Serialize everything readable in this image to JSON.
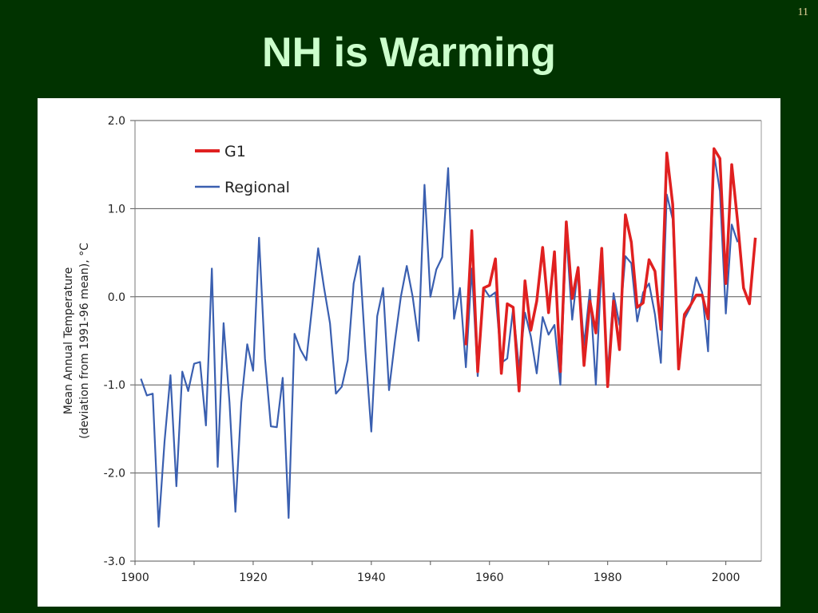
{
  "slide": {
    "number": "11",
    "title": "NH is Warming"
  },
  "chart_data": {
    "type": "line",
    "title": "",
    "xlabel": "",
    "ylabel_line1": "Mean Annual Temperature",
    "ylabel_line2": "(deviation from 1991-96 mean), °C",
    "xlim": [
      1900,
      2006
    ],
    "ylim": [
      -3.0,
      2.0
    ],
    "xticks": [
      1900,
      1920,
      1940,
      1960,
      1980,
      2000
    ],
    "yticks": [
      2.0,
      1.0,
      0.0,
      -1.0,
      -2.0,
      -3.0
    ],
    "ytick_labels": [
      "2.0",
      "1.0",
      "0.0",
      "-1.0",
      "-2.0",
      "-3.0"
    ],
    "grid": "horizontal",
    "legend_position": "top-left",
    "series": [
      {
        "name": "G1",
        "color": "#e02020",
        "x": [
          1956,
          1957,
          1958,
          1959,
          1960,
          1961,
          1962,
          1963,
          1964,
          1965,
          1966,
          1967,
          1968,
          1969,
          1970,
          1971,
          1972,
          1973,
          1974,
          1975,
          1976,
          1977,
          1978,
          1979,
          1980,
          1981,
          1982,
          1983,
          1984,
          1985,
          1986,
          1987,
          1988,
          1989,
          1990,
          1991,
          1992,
          1993,
          1994,
          1995,
          1996,
          1997,
          1998,
          1999,
          2000,
          2001,
          2002,
          2003,
          2004,
          2005
        ],
        "values": [
          -0.55,
          0.75,
          -0.85,
          0.1,
          0.13,
          0.43,
          -0.87,
          -0.08,
          -0.12,
          -1.07,
          0.18,
          -0.38,
          -0.05,
          0.56,
          -0.18,
          0.51,
          -0.85,
          0.85,
          -0.02,
          0.33,
          -0.78,
          -0.05,
          -0.41,
          0.55,
          -1.02,
          -0.05,
          -0.6,
          0.93,
          0.62,
          -0.12,
          -0.07,
          0.42,
          0.29,
          -0.37,
          1.63,
          1.05,
          -0.82,
          -0.2,
          -0.1,
          0.02,
          0.02,
          -0.25,
          1.68,
          1.57,
          0.15,
          1.5,
          0.85,
          0.1,
          -0.08,
          0.67
        ]
      },
      {
        "name": "Regional",
        "color": "#3a5fb0",
        "x": [
          1901,
          1902,
          1903,
          1904,
          1905,
          1906,
          1907,
          1908,
          1909,
          1910,
          1911,
          1912,
          1913,
          1914,
          1915,
          1916,
          1917,
          1918,
          1919,
          1920,
          1921,
          1922,
          1923,
          1924,
          1925,
          1926,
          1927,
          1928,
          1929,
          1930,
          1931,
          1932,
          1933,
          1934,
          1935,
          1936,
          1937,
          1938,
          1939,
          1940,
          1941,
          1942,
          1943,
          1944,
          1945,
          1946,
          1947,
          1948,
          1949,
          1950,
          1951,
          1952,
          1953,
          1954,
          1955,
          1956,
          1957,
          1958,
          1959,
          1960,
          1961,
          1962,
          1963,
          1964,
          1965,
          1966,
          1967,
          1968,
          1969,
          1970,
          1971,
          1972,
          1973,
          1974,
          1975,
          1976,
          1977,
          1978,
          1979,
          1980,
          1981,
          1982,
          1983,
          1984,
          1985,
          1986,
          1987,
          1988,
          1989,
          1990,
          1991,
          1992,
          1993,
          1994,
          1995,
          1996,
          1997,
          1998,
          1999,
          2000,
          2001,
          2002
        ],
        "values": [
          -0.93,
          -1.12,
          -1.1,
          -2.61,
          -1.64,
          -0.89,
          -2.15,
          -0.85,
          -1.07,
          -0.76,
          -0.74,
          -1.46,
          0.32,
          -1.93,
          -0.3,
          -1.2,
          -2.44,
          -1.2,
          -0.54,
          -0.84,
          0.67,
          -0.7,
          -1.47,
          -1.48,
          -0.92,
          -2.51,
          -0.42,
          -0.6,
          -0.72,
          -0.1,
          0.55,
          0.1,
          -0.3,
          -1.1,
          -1.02,
          -0.72,
          0.15,
          0.46,
          -0.62,
          -1.53,
          -0.22,
          0.1,
          -1.06,
          -0.5,
          0.0,
          0.35,
          0.0,
          -0.5,
          1.27,
          0.0,
          0.31,
          0.45,
          1.46,
          -0.25,
          0.1,
          -0.8,
          0.32,
          -0.9,
          0.1,
          0.0,
          0.05,
          -0.75,
          -0.7,
          -0.13,
          -0.82,
          -0.18,
          -0.45,
          -0.87,
          -0.23,
          -0.43,
          -0.32,
          -1.0,
          0.72,
          -0.26,
          0.34,
          -0.55,
          0.08,
          -1.0,
          0.4,
          -0.87,
          0.04,
          -0.32,
          0.46,
          0.38,
          -0.28,
          0.05,
          0.15,
          -0.2,
          -0.75,
          1.16,
          0.88,
          -0.78,
          -0.25,
          -0.12,
          0.22,
          0.05,
          -0.62,
          1.62,
          1.2,
          -0.19,
          0.82,
          0.62
        ]
      }
    ]
  }
}
